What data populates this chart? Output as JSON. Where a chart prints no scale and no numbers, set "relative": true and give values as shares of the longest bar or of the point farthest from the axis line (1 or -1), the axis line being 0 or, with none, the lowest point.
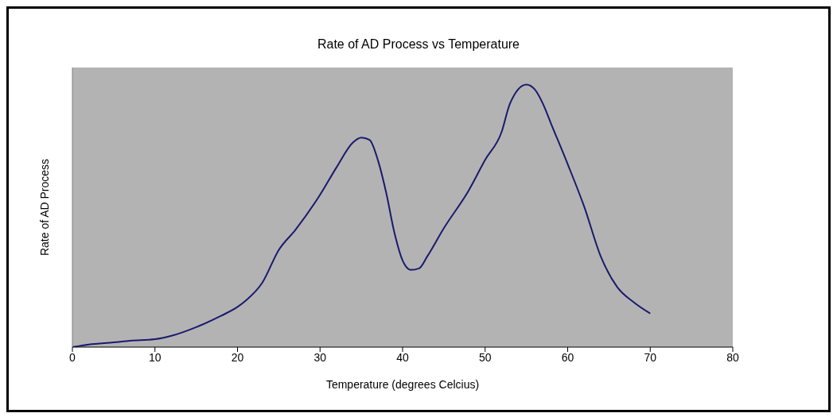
{
  "chart_data": {
    "type": "line",
    "title": "Rate of AD Process vs Temperature",
    "xlabel": "Temperature (degrees Celcius)",
    "ylabel": "Rate of AD Process",
    "relative": true,
    "xlim": [
      0,
      80
    ],
    "xticks": [
      0,
      10,
      20,
      30,
      40,
      50,
      60,
      70,
      80
    ],
    "grid": false,
    "legend": false,
    "marker": "none",
    "line_style": "solid",
    "series": [
      {
        "color": "#1a1a6e",
        "x": [
          0,
          2,
          5,
          7,
          10,
          12,
          15,
          18,
          20,
          21,
          23,
          25,
          27,
          30,
          32,
          34,
          35,
          36,
          37,
          38,
          39,
          40,
          41,
          42,
          43,
          45,
          48,
          50,
          52,
          53,
          55,
          56,
          57,
          58,
          60,
          62,
          64,
          66,
          68,
          70
        ],
        "values": [
          0,
          0.01,
          0.018,
          0.024,
          0.03,
          0.043,
          0.076,
          0.119,
          0.153,
          0.177,
          0.245,
          0.37,
          0.446,
          0.58,
          0.685,
          0.78,
          0.798,
          0.789,
          0.713,
          0.59,
          0.437,
          0.33,
          0.294,
          0.3,
          0.346,
          0.453,
          0.596,
          0.713,
          0.82,
          0.927,
          1,
          0.982,
          0.927,
          0.85,
          0.697,
          0.535,
          0.346,
          0.229,
          0.171,
          0.128
        ]
      }
    ]
  }
}
